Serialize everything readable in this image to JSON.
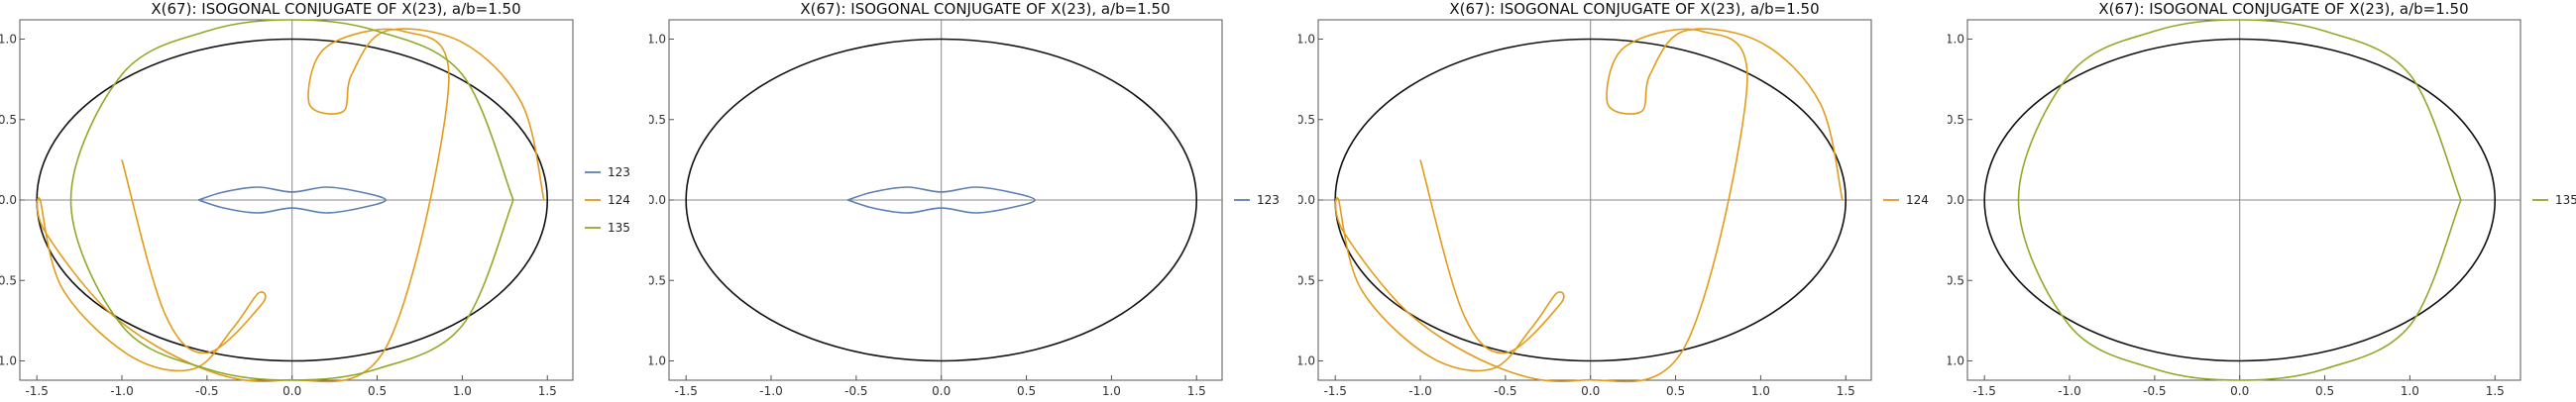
{
  "panels": [
    {
      "title": "X(67): ISOGONAL CONJUGATE OF X(23), a/b=1.50",
      "legend": [
        "123",
        "124",
        "135"
      ]
    },
    {
      "title": "X(67): ISOGONAL CONJUGATE OF X(23), a/b=1.50",
      "legend": [
        "123"
      ]
    },
    {
      "title": "X(67): ISOGONAL CONJUGATE OF X(23), a/b=1.50",
      "legend": [
        "124"
      ]
    },
    {
      "title": "X(67): ISOGONAL CONJUGATE OF X(23), a/b=1.50",
      "legend": [
        "135"
      ]
    }
  ],
  "colors": {
    "123": "#5b7fb6",
    "124": "#e39b1a",
    "135": "#8daa27",
    "ellipse": "#111111",
    "axes": "#888888"
  },
  "chart_data": [
    {
      "type": "line",
      "title": "X(67): ISOGONAL CONJUGATE OF X(23), a/b=1.50",
      "xlim": [
        -1.6,
        1.65
      ],
      "ylim": [
        -1.12,
        1.12
      ],
      "x_ticks": [
        "-1.5",
        "-1.0",
        "-0.5",
        "0.0",
        "0.5",
        "1.0",
        "1.5"
      ],
      "y_ticks": [
        "-1.0",
        "-0.5",
        "0.0",
        "0.5",
        "1.0"
      ],
      "legend_position": "right",
      "ellipse": {
        "a": 1.5,
        "b": 1.0
      },
      "series": [
        {
          "name": "123",
          "x": [
            -0.55,
            -0.4,
            -0.2,
            0.0,
            0.2,
            0.4,
            0.55,
            0.4,
            0.2,
            0.0,
            -0.2,
            -0.4,
            -0.55
          ],
          "y": [
            0.0,
            0.05,
            0.08,
            0.05,
            0.08,
            0.05,
            0.0,
            -0.05,
            -0.08,
            -0.05,
            -0.08,
            -0.05,
            0.0
          ]
        },
        {
          "name": "124",
          "x": [
            1.48,
            1.35,
            1.0,
            0.55,
            0.35,
            0.3,
            0.1,
            0.2,
            0.65,
            0.92,
            0.55,
            -0.05,
            -0.52,
            -1.05,
            -1.45,
            -1.48,
            -1.35,
            -0.95,
            -0.58,
            -0.35,
            -0.2,
            -0.18,
            -0.5,
            -0.75,
            -1.0
          ],
          "y": [
            0.0,
            0.6,
            0.98,
            1.05,
            0.78,
            0.55,
            0.6,
            0.95,
            1.05,
            0.72,
            -0.92,
            -1.12,
            -1.05,
            -0.72,
            -0.2,
            0.0,
            -0.55,
            -0.97,
            -1.05,
            -0.8,
            -0.58,
            -0.65,
            -0.95,
            -0.7,
            0.25
          ]
        },
        {
          "name": "135",
          "x": [
            1.3,
            1.0,
            0.5,
            0.0,
            -0.5,
            -1.0,
            -1.3,
            -1.0,
            -0.5,
            0.0,
            0.5,
            1.0,
            1.3
          ],
          "y": [
            0.0,
            0.78,
            1.05,
            1.12,
            1.05,
            0.78,
            0.0,
            -0.78,
            -1.05,
            -1.12,
            -1.05,
            -0.78,
            0.0
          ]
        }
      ]
    },
    {
      "type": "line",
      "title": "X(67): ISOGONAL CONJUGATE OF X(23), a/b=1.50",
      "xlim": [
        -1.6,
        1.65
      ],
      "ylim": [
        -1.12,
        1.12
      ],
      "x_ticks": [
        "-1.5",
        "-1.0",
        "-0.5",
        "0.0",
        "0.5",
        "1.0",
        "1.5"
      ],
      "y_ticks": [
        "-1.0",
        "-0.5",
        "0.0",
        "0.5",
        "1.0"
      ],
      "legend_position": "right",
      "ellipse": {
        "a": 1.5,
        "b": 1.0
      },
      "series": [
        {
          "name": "123",
          "x": [
            -0.55,
            -0.4,
            -0.2,
            0.0,
            0.2,
            0.4,
            0.55,
            0.4,
            0.2,
            0.0,
            -0.2,
            -0.4,
            -0.55
          ],
          "y": [
            0.0,
            0.05,
            0.08,
            0.05,
            0.08,
            0.05,
            0.0,
            -0.05,
            -0.08,
            -0.05,
            -0.08,
            -0.05,
            0.0
          ]
        }
      ]
    },
    {
      "type": "line",
      "title": "X(67): ISOGONAL CONJUGATE OF X(23), a/b=1.50",
      "xlim": [
        -1.6,
        1.65
      ],
      "ylim": [
        -1.12,
        1.12
      ],
      "x_ticks": [
        "-1.5",
        "-1.0",
        "-0.5",
        "0.0",
        "0.5",
        "1.0",
        "1.5"
      ],
      "y_ticks": [
        "-1.0",
        "-0.5",
        "0.0",
        "0.5",
        "1.0"
      ],
      "legend_position": "right",
      "ellipse": {
        "a": 1.5,
        "b": 1.0
      },
      "series": [
        {
          "name": "124",
          "x": [
            1.48,
            1.35,
            1.0,
            0.55,
            0.35,
            0.3,
            0.1,
            0.2,
            0.65,
            0.92,
            0.55,
            -0.05,
            -0.52,
            -1.05,
            -1.45,
            -1.48,
            -1.35,
            -0.95,
            -0.58,
            -0.35,
            -0.2,
            -0.18,
            -0.5,
            -0.75,
            -1.0
          ],
          "y": [
            0.0,
            0.6,
            0.98,
            1.05,
            0.78,
            0.55,
            0.6,
            0.95,
            1.05,
            0.72,
            -0.92,
            -1.12,
            -1.05,
            -0.72,
            -0.2,
            0.0,
            -0.55,
            -0.97,
            -1.05,
            -0.8,
            -0.58,
            -0.65,
            -0.95,
            -0.7,
            0.25
          ]
        }
      ]
    },
    {
      "type": "line",
      "title": "X(67): ISOGONAL CONJUGATE OF X(23), a/b=1.50",
      "xlim": [
        -1.6,
        1.65
      ],
      "ylim": [
        -1.12,
        1.12
      ],
      "x_ticks": [
        "-1.5",
        "-1.0",
        "-0.5",
        "0.0",
        "0.5",
        "1.0",
        "1.5"
      ],
      "y_ticks": [
        "-1.0",
        "-0.5",
        "0.0",
        "0.5",
        "1.0"
      ],
      "legend_position": "right",
      "ellipse": {
        "a": 1.5,
        "b": 1.0
      },
      "series": [
        {
          "name": "135",
          "x": [
            1.3,
            1.0,
            0.5,
            0.0,
            -0.5,
            -1.0,
            -1.3,
            -1.0,
            -0.5,
            0.0,
            0.5,
            1.0,
            1.3
          ],
          "y": [
            0.0,
            0.78,
            1.05,
            1.12,
            1.05,
            0.78,
            0.0,
            -0.78,
            -1.05,
            -1.12,
            -1.05,
            -0.78,
            0.0
          ]
        }
      ]
    }
  ]
}
